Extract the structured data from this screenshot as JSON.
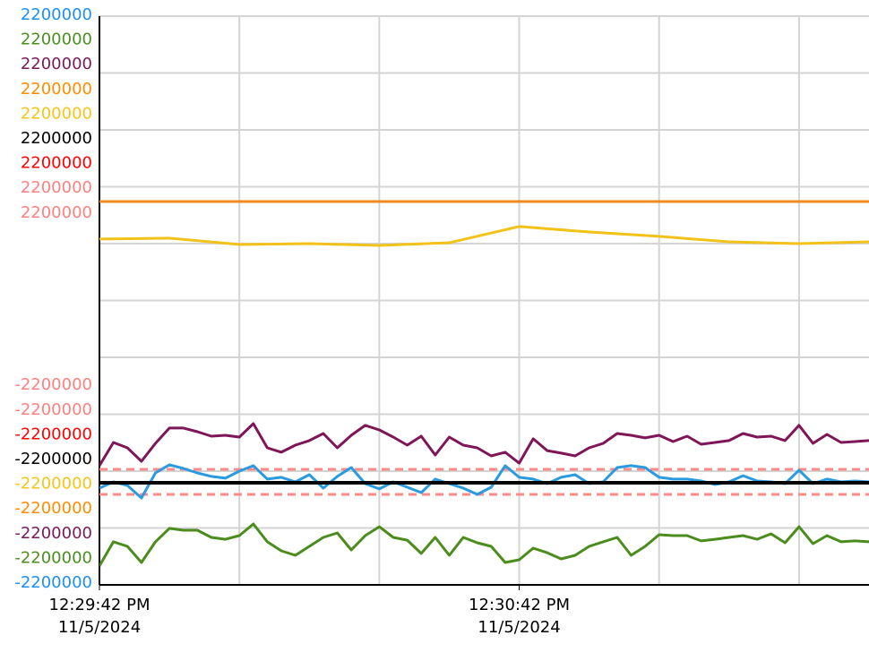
{
  "chart_data": {
    "type": "line",
    "xlim": [
      0,
      110
    ],
    "xticks": [
      {
        "value": 0,
        "label": "12:29:42 PM\n11/5/2024"
      },
      {
        "value": 60,
        "label": "12:30:42 PM\n11/5/2024"
      }
    ],
    "ylim": [
      -2200000,
      2200000
    ],
    "grid": true,
    "y_axes": [
      {
        "color": "#1e8ff0",
        "ylim": [
          -2200000,
          2200000
        ]
      },
      {
        "color": "#4a8f1e",
        "ylim": [
          -2200000,
          2200000
        ]
      },
      {
        "color": "#7b1a5a",
        "ylim": [
          -2200000,
          2200000
        ]
      },
      {
        "color": "#ff8c00",
        "ylim": [
          -2200000,
          2200000
        ]
      },
      {
        "color": "#f5c518",
        "ylim": [
          -2200000,
          2200000
        ]
      },
      {
        "color": "#000000",
        "ylim": [
          -2200000,
          2200000
        ]
      },
      {
        "color": "#ff0000",
        "ylim": [
          -2200000,
          2200000
        ]
      },
      {
        "color": "#ff8080",
        "ylim": [
          -2200000,
          2200000
        ]
      },
      {
        "color": "#ff8080",
        "ylim": [
          -2200000,
          2200000
        ]
      }
    ],
    "x": [
      0,
      2,
      4,
      6,
      8,
      10,
      12,
      14,
      16,
      18,
      20,
      22,
      24,
      26,
      28,
      30,
      32,
      34,
      36,
      38,
      40,
      42,
      44,
      46,
      48,
      50,
      52,
      54,
      56,
      58,
      60,
      62,
      64,
      66,
      68,
      70,
      72,
      74,
      76,
      78,
      80,
      82,
      84,
      86,
      88,
      90,
      92,
      94,
      96,
      98,
      100,
      102,
      104,
      106,
      108,
      110
    ],
    "series": [
      {
        "color": "#ff8a8a",
        "dash": true,
        "x": [
          0,
          110
        ],
        "values": [
          -1306000,
          -1306000
        ]
      },
      {
        "color": "#ff8a8a",
        "dash": true,
        "x": [
          0,
          110
        ],
        "values": [
          -1500000,
          -1500000
        ]
      },
      {
        "color": "#f08a1e",
        "x": [
          0,
          110
        ],
        "values": [
          766000,
          766000
        ]
      },
      {
        "color": "#f2c21b",
        "x": [
          0,
          10,
          20,
          30,
          40,
          50,
          60,
          70,
          80,
          90,
          100,
          110
        ],
        "values": [
          475000,
          482000,
          433000,
          440000,
          426000,
          447000,
          572000,
          530000,
          496000,
          454000,
          440000,
          454000
        ]
      },
      {
        "color": "#7e1657",
        "values": [
          -1278000,
          -1098000,
          -1140000,
          -1244000,
          -1105000,
          -987000,
          -987000,
          -1015000,
          -1050000,
          -1043000,
          -1057000,
          -953000,
          -1140000,
          -1174000,
          -1119000,
          -1084000,
          -1029000,
          -1140000,
          -1043000,
          -966000,
          -1001000,
          -1057000,
          -1119000,
          -1050000,
          -1195000,
          -1057000,
          -1119000,
          -1140000,
          -1202000,
          -1174000,
          -1258000,
          -1070000,
          -1161000,
          -1181000,
          -1202000,
          -1140000,
          -1105000,
          -1029000,
          -1043000,
          -1063000,
          -1043000,
          -1091000,
          -1050000,
          -1112000,
          -1098000,
          -1084000,
          -1029000,
          -1057000,
          -1050000,
          -1084000,
          -966000,
          -1105000,
          -1036000,
          -1098000,
          -1091000,
          -1084000
        ]
      },
      {
        "color": "#2b9be0",
        "values": [
          -1452000,
          -1403000,
          -1431000,
          -1528000,
          -1334000,
          -1271000,
          -1299000,
          -1334000,
          -1361000,
          -1375000,
          -1320000,
          -1278000,
          -1382000,
          -1368000,
          -1403000,
          -1348000,
          -1452000,
          -1361000,
          -1292000,
          -1417000,
          -1458000,
          -1403000,
          -1445000,
          -1486000,
          -1382000,
          -1417000,
          -1452000,
          -1500000,
          -1445000,
          -1278000,
          -1368000,
          -1382000,
          -1417000,
          -1368000,
          -1348000,
          -1417000,
          -1403000,
          -1292000,
          -1278000,
          -1292000,
          -1368000,
          -1382000,
          -1382000,
          -1396000,
          -1424000,
          -1403000,
          -1355000,
          -1396000,
          -1403000,
          -1417000,
          -1313000,
          -1417000,
          -1382000,
          -1403000,
          -1396000,
          -1403000
        ]
      },
      {
        "color": "#000000",
        "width": 4,
        "x": [
          0,
          110
        ],
        "values": [
          -1410000,
          -1410000
        ]
      },
      {
        "color": "#4c8c1d",
        "values": [
          -2054000,
          -1867000,
          -1902000,
          -2027000,
          -1867000,
          -1763000,
          -1777000,
          -1777000,
          -1833000,
          -1847000,
          -1819000,
          -1729000,
          -1867000,
          -1937000,
          -1971000,
          -1902000,
          -1833000,
          -1798000,
          -1930000,
          -1819000,
          -1750000,
          -1833000,
          -1854000,
          -1957000,
          -1833000,
          -1971000,
          -1833000,
          -1874000,
          -1902000,
          -2027000,
          -2006000,
          -1916000,
          -1951000,
          -1999000,
          -1971000,
          -1902000,
          -1867000,
          -1833000,
          -1971000,
          -1902000,
          -1812000,
          -1819000,
          -1819000,
          -1860000,
          -1847000,
          -1833000,
          -1819000,
          -1847000,
          -1805000,
          -1874000,
          -1750000,
          -1881000,
          -1819000,
          -1867000,
          -1860000,
          -1867000
        ]
      }
    ]
  }
}
